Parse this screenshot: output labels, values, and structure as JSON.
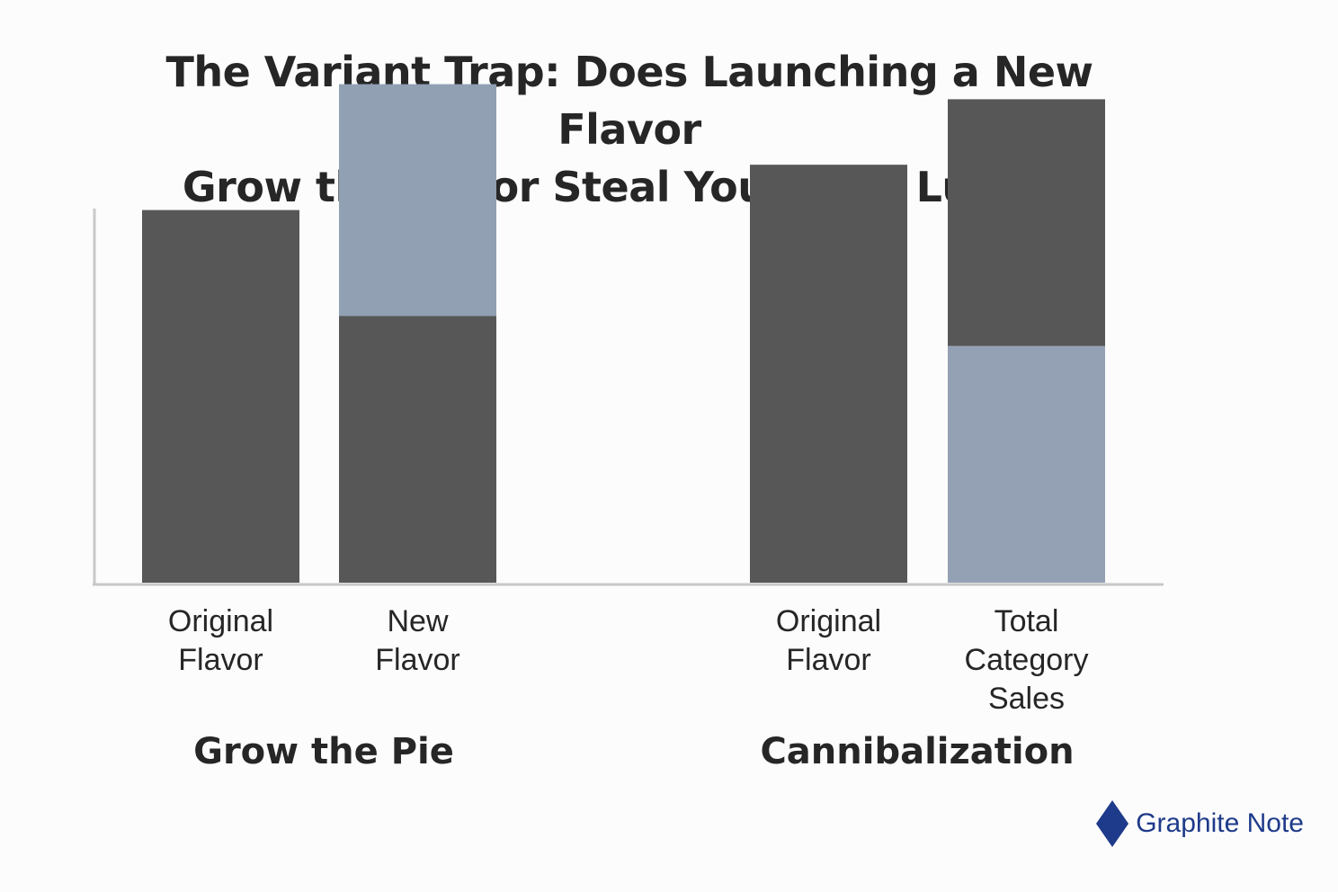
{
  "title_lines": [
    "The Variant Trap: Does Launching a New Flavor",
    "Grow the Pie or Steal Your Own Lunch?"
  ],
  "chart_data": {
    "type": "bar",
    "stacked": true,
    "grid": false,
    "ylim": [
      0,
      100
    ],
    "groups": [
      {
        "label": "Grow the Pie",
        "bars": [
          {
            "category": [
              "Original",
              "Flavor"
            ],
            "segments": [
              {
                "value": 74,
                "color": "#575757"
              }
            ]
          },
          {
            "category": [
              "New",
              "Flavor"
            ],
            "segments": [
              {
                "value": 53,
                "color": "#575757"
              },
              {
                "value": 46,
                "color": "#91a0b3"
              }
            ]
          }
        ]
      },
      {
        "label": "Cannibalization",
        "bars": [
          {
            "category": [
              "Original",
              "Flavor"
            ],
            "segments": [
              {
                "value": 83,
                "color": "#575757"
              }
            ]
          },
          {
            "category": [
              "Total",
              "Category",
              "Sales"
            ],
            "segments": [
              {
                "value": 47,
                "color": "#94a1b5"
              },
              {
                "value": 49,
                "color": "#575757"
              }
            ]
          }
        ]
      }
    ]
  },
  "brand": {
    "name": "Graphite Note",
    "color": "#1e3a8a",
    "icon": "diamond-logo-icon"
  }
}
